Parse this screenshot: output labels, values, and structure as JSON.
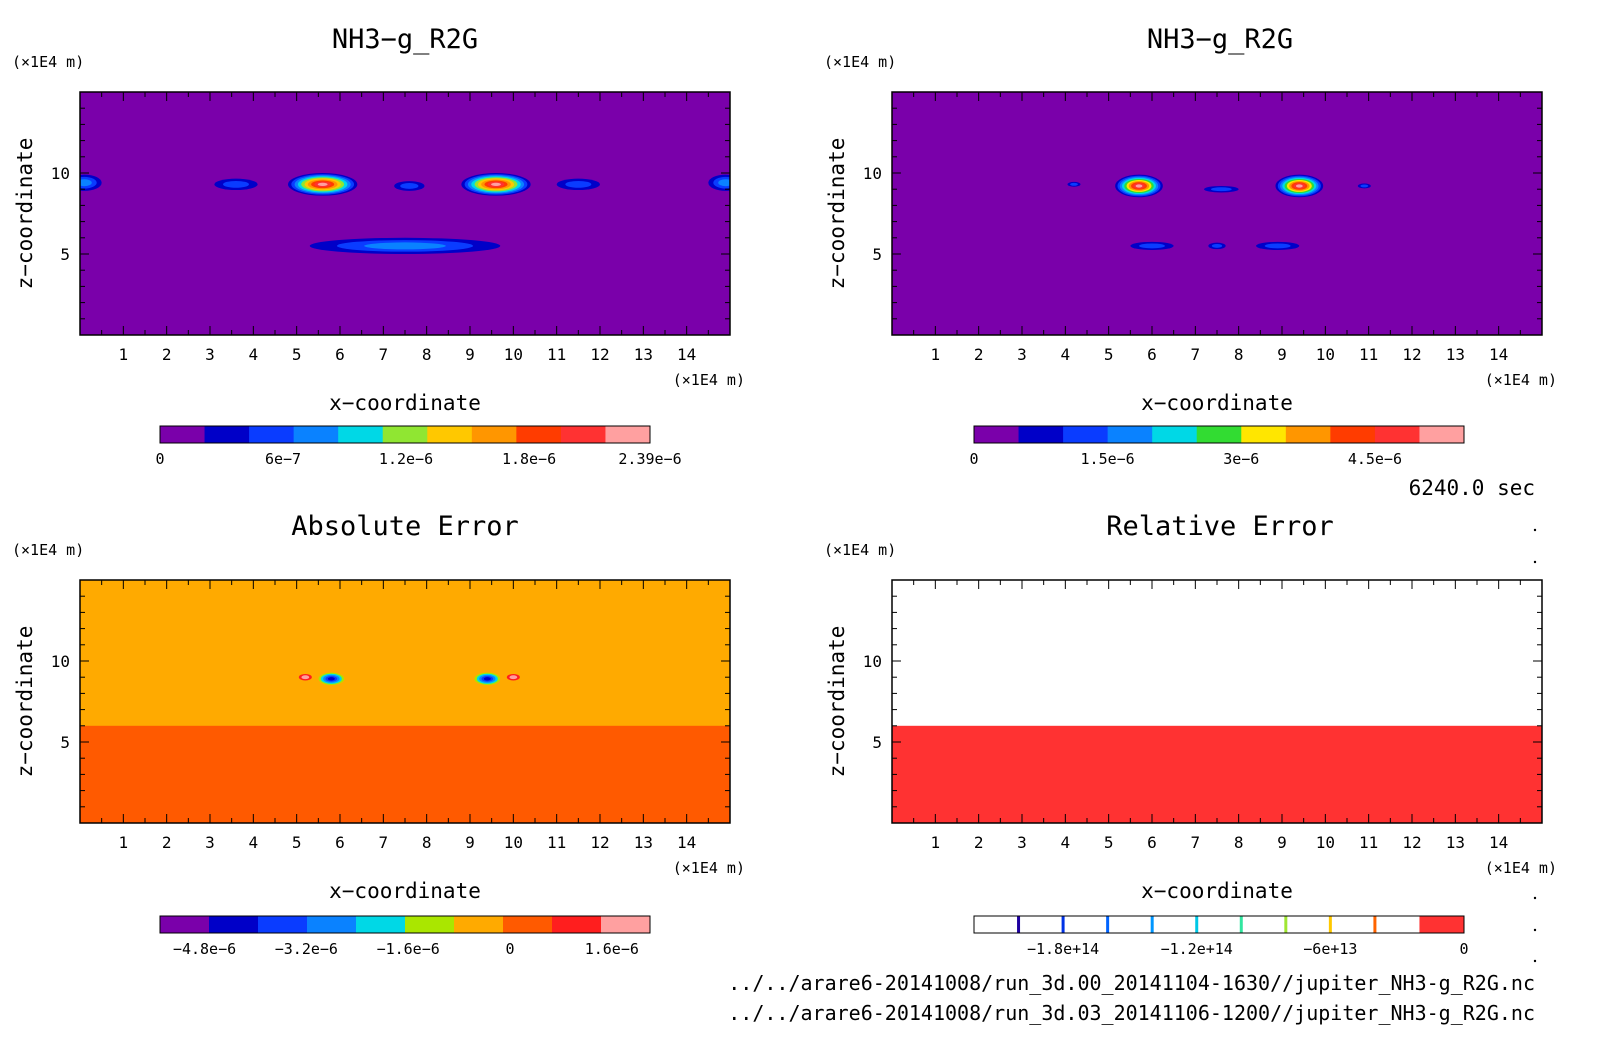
{
  "chart_data": [
    {
      "type": "heatmap",
      "title": "NH3−g_R2G",
      "xlabel": "x−coordinate",
      "ylabel": "z−coordinate",
      "x_unit": "(×1E4 m)",
      "z_unit": "(×1E4 m)",
      "xlim": [
        0,
        15
      ],
      "zlim": [
        0,
        15
      ],
      "x_ticks": [
        1,
        2,
        3,
        4,
        5,
        6,
        7,
        8,
        9,
        10,
        11,
        12,
        13,
        14
      ],
      "z_ticks": [
        5,
        10
      ],
      "background_level": 0,
      "features": [
        {
          "x": 5.6,
          "z": 9.3,
          "rx": 0.8,
          "rz": 0.7,
          "peak": 10
        },
        {
          "x": 9.6,
          "z": 9.3,
          "rx": 0.8,
          "rz": 0.7,
          "peak": 10
        },
        {
          "x": 3.6,
          "z": 9.3,
          "rx": 0.5,
          "rz": 0.35,
          "peak": 2
        },
        {
          "x": 7.6,
          "z": 9.2,
          "rx": 0.35,
          "rz": 0.3,
          "peak": 2
        },
        {
          "x": 11.5,
          "z": 9.3,
          "rx": 0.5,
          "rz": 0.35,
          "peak": 2
        },
        {
          "x": 0.1,
          "z": 9.4,
          "rx": 0.4,
          "rz": 0.5,
          "peak": 3
        },
        {
          "x": 14.9,
          "z": 9.4,
          "rx": 0.4,
          "rz": 0.5,
          "peak": 3
        },
        {
          "x": 7.5,
          "z": 5.5,
          "rx": 2.2,
          "rz": 0.5,
          "peak": 3
        }
      ],
      "colorbar": {
        "colors": [
          "#7a00aa",
          "#0000c8",
          "#0a3cff",
          "#0a82ff",
          "#00d8e6",
          "#90e632",
          "#ffc800",
          "#ff9600",
          "#ff3c00",
          "#ff3232",
          "#ffa0a0"
        ],
        "ticks": [
          {
            "label": "0",
            "value": 0
          },
          {
            "label": "6e−7",
            "value": 6e-07
          },
          {
            "label": "1.2e−6",
            "value": 1.2e-06
          },
          {
            "label": "1.8e−6",
            "value": 1.8e-06
          },
          {
            "label": "2.39e−6",
            "value": 2.39e-06
          }
        ],
        "min": 0,
        "max": 2.39e-06
      }
    },
    {
      "type": "heatmap",
      "title": "NH3−g_R2G",
      "xlabel": "x−coordinate",
      "ylabel": "z−coordinate",
      "x_unit": "(×1E4 m)",
      "z_unit": "(×1E4 m)",
      "xlim": [
        0,
        15
      ],
      "zlim": [
        0,
        15
      ],
      "x_ticks": [
        1,
        2,
        3,
        4,
        5,
        6,
        7,
        8,
        9,
        10,
        11,
        12,
        13,
        14
      ],
      "z_ticks": [
        5,
        10
      ],
      "background_level": 0,
      "features": [
        {
          "x": 5.7,
          "z": 9.2,
          "rx": 0.55,
          "rz": 0.7,
          "peak": 10
        },
        {
          "x": 9.4,
          "z": 9.2,
          "rx": 0.55,
          "rz": 0.7,
          "peak": 10
        },
        {
          "x": 4.2,
          "z": 9.3,
          "rx": 0.15,
          "rz": 0.15,
          "peak": 2
        },
        {
          "x": 7.6,
          "z": 9.0,
          "rx": 0.4,
          "rz": 0.2,
          "peak": 2
        },
        {
          "x": 10.9,
          "z": 9.2,
          "rx": 0.15,
          "rz": 0.15,
          "peak": 2
        },
        {
          "x": 6.0,
          "z": 5.5,
          "rx": 0.5,
          "rz": 0.25,
          "peak": 2
        },
        {
          "x": 7.5,
          "z": 5.5,
          "rx": 0.2,
          "rz": 0.2,
          "peak": 2
        },
        {
          "x": 8.9,
          "z": 5.5,
          "rx": 0.5,
          "rz": 0.25,
          "peak": 2
        }
      ],
      "colorbar": {
        "colors": [
          "#7a00aa",
          "#0000c8",
          "#0a3cff",
          "#0a82ff",
          "#00d8e6",
          "#32dc32",
          "#ffe600",
          "#ff9600",
          "#ff3c00",
          "#ff3232",
          "#ffa0a0"
        ],
        "ticks": [
          {
            "label": "0",
            "value": 0
          },
          {
            "label": "1.5e−6",
            "value": 1.5e-06
          },
          {
            "label": "3e−6",
            "value": 3e-06
          },
          {
            "label": "4.5e−6",
            "value": 4.5e-06
          }
        ],
        "min": 0,
        "max": 5.5e-06
      }
    },
    {
      "type": "heatmap",
      "title": "Absolute Error",
      "xlabel": "x−coordinate",
      "ylabel": "z−coordinate",
      "x_unit": "(×1E4 m)",
      "z_unit": "(×1E4 m)",
      "xlim": [
        0,
        15
      ],
      "zlim": [
        0,
        15
      ],
      "x_ticks": [
        1,
        2,
        3,
        4,
        5,
        6,
        7,
        8,
        9,
        10,
        11,
        12,
        13,
        14
      ],
      "z_ticks": [
        5,
        10
      ],
      "background_level": 7,
      "upper_level": 6,
      "upper_from_z": 6.0,
      "features": [
        {
          "x": 5.8,
          "z": 8.9,
          "rx": 0.35,
          "rz": 0.45,
          "peak": 1
        },
        {
          "x": 9.4,
          "z": 8.9,
          "rx": 0.35,
          "rz": 0.45,
          "peak": 1
        },
        {
          "x": 5.2,
          "z": 9.0,
          "rx": 0.15,
          "rz": 0.2,
          "peak": 9
        },
        {
          "x": 10.0,
          "z": 9.0,
          "rx": 0.15,
          "rz": 0.2,
          "peak": 9
        }
      ],
      "colorbar": {
        "colors": [
          "#7a00aa",
          "#0000c8",
          "#0a3cff",
          "#0a82ff",
          "#00d8e6",
          "#aae600",
          "#ffaa00",
          "#ff5a00",
          "#ff1e1e",
          "#ffa0a0"
        ],
        "ticks": [
          {
            "label": "−4.8e−6",
            "value": -4.8e-06
          },
          {
            "label": "−3.2e−6",
            "value": -3.2e-06
          },
          {
            "label": "−1.6e−6",
            "value": -1.6e-06
          },
          {
            "label": "0",
            "value": 0
          },
          {
            "label": "1.6e−6",
            "value": 1.6e-06
          }
        ],
        "min": -5.5e-06,
        "max": 2.2e-06
      }
    },
    {
      "type": "heatmap",
      "title": "Relative Error",
      "xlabel": "x−coordinate",
      "ylabel": "z−coordinate",
      "x_unit": "(×1E4 m)",
      "z_unit": "(×1E4 m)",
      "xlim": [
        0,
        15
      ],
      "zlim": [
        0,
        15
      ],
      "x_ticks": [
        1,
        2,
        3,
        4,
        5,
        6,
        7,
        8,
        9,
        10,
        11,
        12,
        13,
        14
      ],
      "z_ticks": [
        5,
        10
      ],
      "background_level": 10,
      "upper_level": 9,
      "upper_from_z": 6.0,
      "features": [
        {
          "x": 5.6,
          "z": 8.8,
          "rx": 0.08,
          "rz": 0.08,
          "peak": 5
        },
        {
          "x": 9.6,
          "z": 8.8,
          "rx": 0.08,
          "rz": 0.08,
          "peak": 5
        }
      ],
      "colorbar": {
        "colors": [
          "#ffffff",
          "#ffffff",
          "#ffffff",
          "#ffffff",
          "#ffffff",
          "#ffffff",
          "#ffffff",
          "#ffffff",
          "#ffffff",
          "#ffffff",
          "#ff3232"
        ],
        "separators": [
          "#1e00a0",
          "#0032e6",
          "#0064ff",
          "#0096ff",
          "#00c8e6",
          "#32e6a0",
          "#a0e632",
          "#ffc800",
          "#ff6400"
        ],
        "ticks": [
          {
            "label": "−1.8e+14",
            "value": -180000000000000.0
          },
          {
            "label": "−1.2e+14",
            "value": -120000000000000.0
          },
          {
            "label": "−6e+13",
            "value": -60000000000000.0
          },
          {
            "label": "0",
            "value": 0
          }
        ],
        "min": -220000000000000.0,
        "max": 0
      }
    }
  ],
  "time_label": "6240.0 sec",
  "file_paths": [
    "../../arare6-20141008/run_3d.00_20141104-1630//jupiter_NH3-g_R2G.nc",
    "../../arare6-20141008/run_3d.03_20141106-1200//jupiter_NH3-g_R2G.nc"
  ]
}
